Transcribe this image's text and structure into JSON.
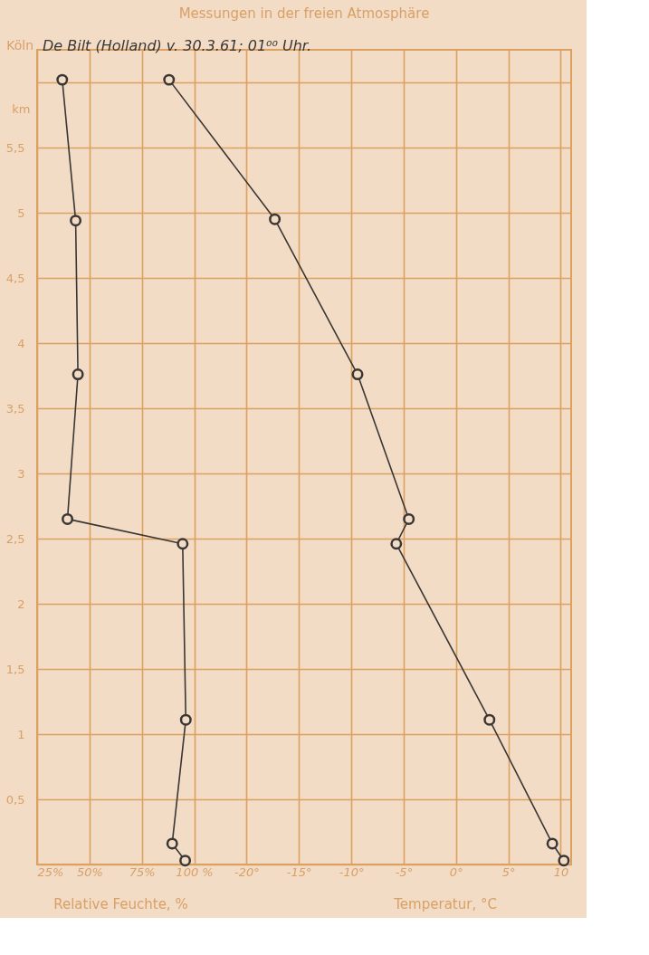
{
  "chart_data": {
    "type": "line",
    "title": "Messungen in der freien Atmosphäre",
    "xlabel": "Relative Feuchte, %",
    "x2label": "Temperatur, °C",
    "ylabel": "km",
    "annotations": [
      "Köln",
      "De Bilt (Holland) v. 30.3.61; 01⁰⁰ Uhr."
    ],
    "xlim": [
      25,
      280
    ],
    "xticks": [
      {
        "value": 25,
        "label": "25%"
      },
      {
        "value": 50,
        "label": "50%"
      },
      {
        "value": 75,
        "label": "75%"
      },
      {
        "value": 100,
        "label": "100 %"
      }
    ],
    "x2lim": [
      -40,
      11
    ],
    "x2ticks": [
      {
        "value": -20,
        "label": "-20°"
      },
      {
        "value": -15,
        "label": "-15°"
      },
      {
        "value": -10,
        "label": "-10°"
      },
      {
        "value": -5,
        "label": "-5°"
      },
      {
        "value": 0,
        "label": "0°"
      },
      {
        "value": 5,
        "label": "5°"
      },
      {
        "value": 10,
        "label": "10"
      }
    ],
    "ylim": [
      0,
      6.25
    ],
    "yticks": [
      {
        "value": 0,
        "label": null
      },
      {
        "value": 0.5,
        "label": "0,5"
      },
      {
        "value": 1,
        "label": "1"
      },
      {
        "value": 1.5,
        "label": "1,5"
      },
      {
        "value": 2,
        "label": "2"
      },
      {
        "value": 2.5,
        "label": "2,5"
      },
      {
        "value": 3,
        "label": "3"
      },
      {
        "value": 3.5,
        "label": "3,5"
      },
      {
        "value": 4,
        "label": "4"
      },
      {
        "value": 4.5,
        "label": "4,5"
      },
      {
        "value": 5,
        "label": "5"
      },
      {
        "value": 5.5,
        "label": "5,5"
      },
      {
        "value": 6,
        "label": null
      }
    ],
    "grid": true,
    "marker": "circle",
    "line_style": "solid",
    "series": [
      {
        "color": "#3a3634",
        "x": [
          37,
          43.4,
          44.5,
          39.5,
          94.5,
          96,
          89.5,
          95.7
        ],
        "values": [
          6.02,
          4.94,
          3.76,
          2.65,
          2.46,
          1.11,
          0.16,
          0.03
        ]
      },
      {
        "color": "#3a3634",
        "axis": "x2",
        "x": [
          -27.4,
          -17.3,
          -9.4,
          -4.5,
          -5.7,
          3.2,
          9.2,
          10.3
        ],
        "values": [
          6.02,
          4.95,
          3.76,
          2.65,
          2.46,
          1.11,
          0.16,
          0.03
        ]
      }
    ]
  }
}
